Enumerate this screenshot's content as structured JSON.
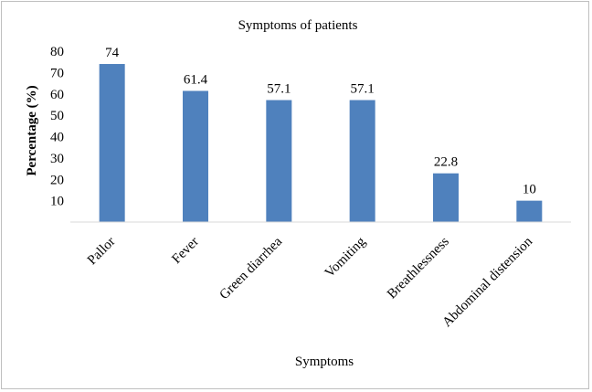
{
  "chart_data": {
    "type": "bar",
    "title": "Symptoms of patients",
    "xlabel": "Symptoms",
    "ylabel": "Percentage (%)",
    "categories": [
      "Pallor",
      "Fever",
      "Green diarrhea",
      "Vomiting",
      "Breathlessness",
      "Abdominal distension"
    ],
    "values": [
      74,
      61.4,
      57.1,
      57.1,
      22.8,
      10
    ],
    "data_labels": [
      "74",
      "61.4",
      "57.1",
      "57.1",
      "22.8",
      "10"
    ],
    "y_ticks": [
      "80",
      "70",
      "60",
      "50",
      "40",
      "30",
      "20",
      "10"
    ],
    "ylim": [
      0,
      80
    ],
    "grid": false,
    "legend": "none",
    "bar_color": "#4f81bd"
  }
}
